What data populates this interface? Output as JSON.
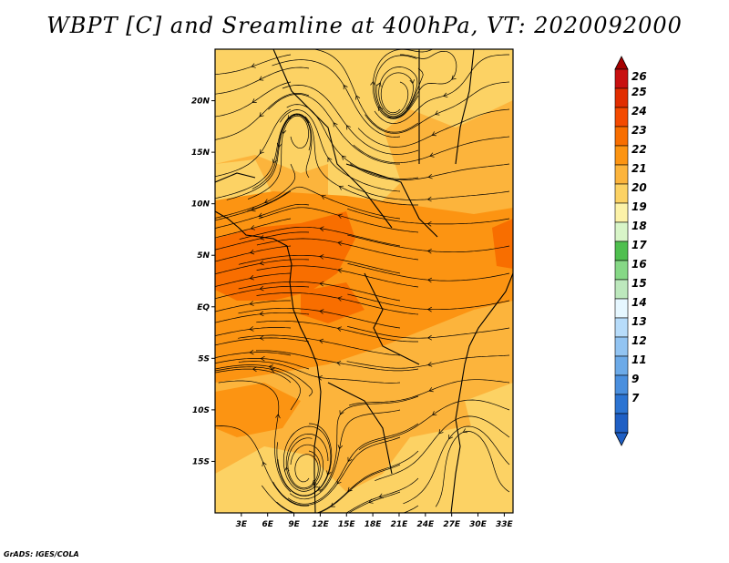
{
  "title": "WBPT [C] and Sreamline at 400hPa, VT: 2020092000",
  "credit": "GrADS: IGES/COLA",
  "lat_labels": [
    "20N",
    "15N",
    "10N",
    "5N",
    "EQ",
    "5S",
    "10S",
    "15S"
  ],
  "lat_values": [
    20,
    15,
    10,
    5,
    0,
    -5,
    -10,
    -15
  ],
  "lon_labels": [
    "3E",
    "6E",
    "9E",
    "12E",
    "15E",
    "18E",
    "21E",
    "24E",
    "27E",
    "30E",
    "33E"
  ],
  "lon_values": [
    3,
    6,
    9,
    12,
    15,
    18,
    21,
    24,
    27,
    30,
    33
  ],
  "domain": {
    "lon_min": 0,
    "lon_max": 34,
    "lat_min": -20,
    "lat_max": 25
  },
  "colorbar": {
    "levels": [
      "26",
      "25",
      "24",
      "23",
      "22",
      "21",
      "20",
      "19",
      "18",
      "17",
      "16",
      "15",
      "14",
      "13",
      "12",
      "11",
      "9",
      "7"
    ],
    "colors": [
      "#a50000",
      "#c81010",
      "#e12d00",
      "#f44a00",
      "#f86e00",
      "#fc9412",
      "#fcb43c",
      "#fcd264",
      "#fcf2a8",
      "#d8f5c8",
      "#4fbf4f",
      "#86d886",
      "#bde8bd",
      "#e6f7ff",
      "#b7dcfa",
      "#92c4f2",
      "#6caae8",
      "#4a8fde",
      "#2c74d2",
      "#1f5fc4"
    ]
  },
  "fill_colors": {
    "c19": "#fcd264",
    "c20": "#fcb43c",
    "c21": "#fc9412",
    "c22": "#f86e00",
    "c23": "#f44a00"
  }
}
